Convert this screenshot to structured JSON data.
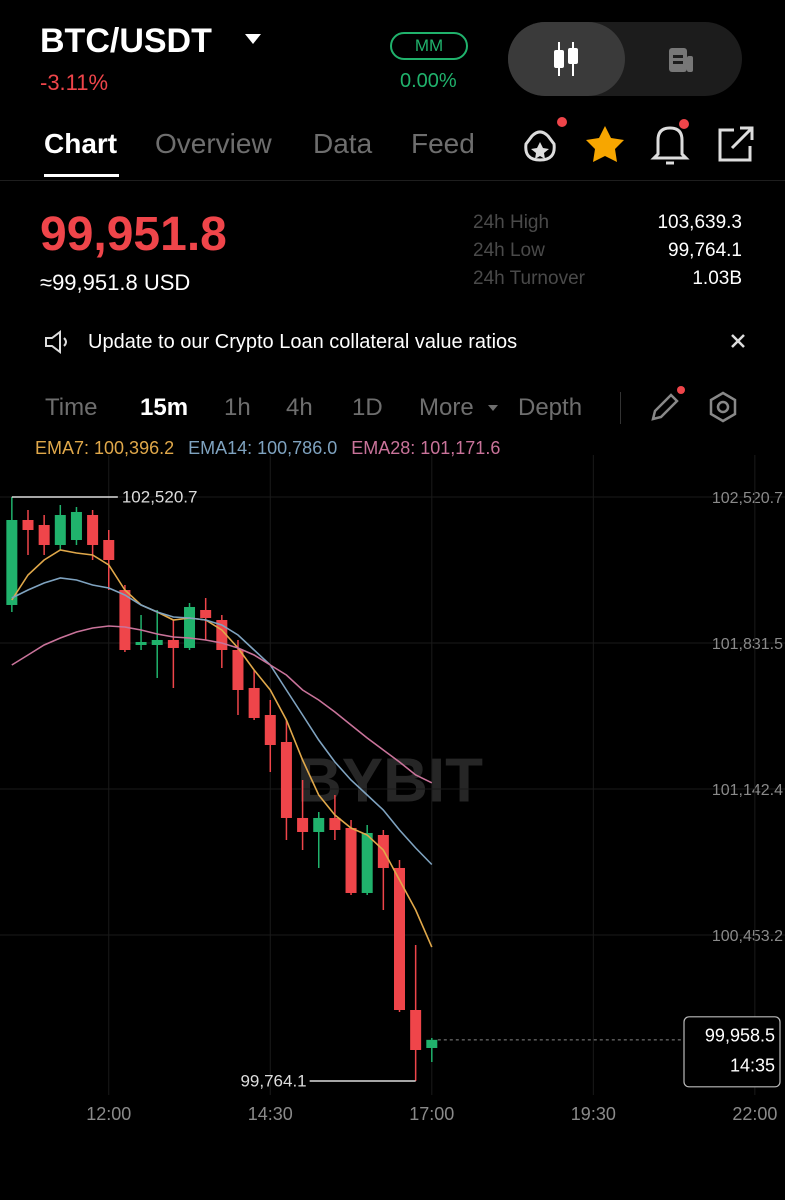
{
  "header": {
    "symbol": "BTC/USDT",
    "change": "-3.11%",
    "badge": "MM",
    "badge_change": "0.00%"
  },
  "tabs": [
    "Chart",
    "Overview",
    "Data",
    "Feed"
  ],
  "price": {
    "last": "99,951.8",
    "usd": "≈99,951.8 USD"
  },
  "stats": [
    {
      "label": "24h High",
      "value": "103,639.3"
    },
    {
      "label": "24h Low",
      "value": "99,764.1"
    },
    {
      "label": "24h Turnover",
      "value": "1.03B"
    }
  ],
  "announcement": "Update to our Crypto Loan collateral value ratios",
  "timeframes": [
    "Time",
    "15m",
    "1h",
    "4h",
    "1D",
    "More",
    "Depth"
  ],
  "chart_data": {
    "type": "candlestick",
    "legend": [
      "EMA7: 100,396.2",
      "EMA14: 100,786.0",
      "EMA28: 101,171.6"
    ],
    "watermark": "BYBIT",
    "x": [
      "10:30",
      "10:45",
      "11:00",
      "11:15",
      "11:30",
      "11:45",
      "12:00",
      "12:15",
      "12:30",
      "12:45",
      "13:00",
      "13:15",
      "13:30",
      "13:45",
      "14:00",
      "14:15",
      "14:30",
      "14:45",
      "15:00",
      "15:15",
      "15:30",
      "15:45",
      "16:00",
      "16:15",
      "16:30",
      "16:45",
      "17:00"
    ],
    "open": [
      102010.9,
      102412.1,
      102388.5,
      102294.1,
      102317.7,
      102435.7,
      102317.7,
      102081.7,
      101822.1,
      101822.1,
      101845.7,
      101808.0,
      101987.3,
      101940.1,
      101798.5,
      101619.2,
      101491.7,
      101364.3,
      101005.6,
      100939.5,
      101005.6,
      100958.4,
      100651.6,
      100925.3,
      100769.6,
      100099.3,
      99920.0
    ],
    "high": [
      102520.7,
      102459.3,
      102435.7,
      102482.9,
      102473.5,
      102459.3,
      102364.9,
      102105.3,
      101963.7,
      101987.3,
      101940.1,
      102020.4,
      102044.0,
      101963.7,
      101845.7,
      101704.1,
      101562.5,
      101468.1,
      101184.9,
      101033.9,
      101114.1,
      100996.1,
      100972.5,
      100948.9,
      100807.3,
      100406.1,
      99967.2
    ],
    "low": [
      101977.9,
      102246.9,
      102246.9,
      102270.5,
      102294.1,
      102223.3,
      102081.7,
      101789.1,
      101798.5,
      101666.4,
      101619.2,
      101798.5,
      101845.7,
      101713.6,
      101491.7,
      101468.1,
      101222.7,
      100901.7,
      100854.5,
      100769.6,
      100901.7,
      100642.1,
      100642.1,
      100571.3,
      100089.9,
      99764.1,
      99853.9
    ],
    "close": [
      102412.1,
      102364.9,
      102294.1,
      102435.7,
      102449.9,
      102294.1,
      102223.3,
      101798.5,
      101836.3,
      101845.7,
      101808.0,
      102001.5,
      101949.6,
      101798.5,
      101609.7,
      101477.6,
      101350.1,
      101005.6,
      100939.5,
      101005.6,
      100948.9,
      100651.6,
      100934.8,
      100769.6,
      100099.3,
      99910.5,
      99958.5
    ],
    "up_color": "#20b26c",
    "down_color": "#ef454a",
    "lines": [
      {
        "color": "#e0a84a",
        "values": [
          102034.5,
          102152.5,
          102223.3,
          102270.5,
          102256.4,
          102246.9,
          102199.7,
          102081.7,
          102010.9,
          101977.9,
          101940.1,
          101949.6,
          101940.1,
          101892.9,
          101808.0,
          101704.1,
          101609.7,
          101468.1,
          101279.3,
          101114.1,
          101019.7,
          100958.4,
          100925.3,
          100854.5,
          100712.9,
          100571.3,
          100396.2
        ]
      },
      {
        "color": "#7fa3c0",
        "values": [
          102044.0,
          102081.7,
          102114.8,
          102138.4,
          102128.9,
          102105.3,
          102091.2,
          102058.1,
          102010.9,
          101977.9,
          101954.3,
          101949.6,
          101940.1,
          101916.5,
          101869.3,
          101798.5,
          101727.7,
          101609.7,
          101491.7,
          101373.7,
          101269.9,
          101184.9,
          101114.1,
          101043.3,
          100948.9,
          100864.0,
          100786.0
        ]
      },
      {
        "color": "#c9739a",
        "values": [
          101727.7,
          101774.9,
          101822.1,
          101855.2,
          101883.5,
          101902.4,
          101911.8,
          101907.1,
          101892.9,
          101874.1,
          101859.9,
          101855.2,
          101845.7,
          101831.6,
          101808.0,
          101774.9,
          101727.7,
          101680.5,
          101609.7,
          101562.5,
          101505.9,
          101444.5,
          101383.2,
          101326.5,
          101269.9,
          101208.5,
          101171.6
        ]
      }
    ],
    "ylim": [
      99698.1,
      102695.3
    ],
    "yticks": [
      {
        "value": 100453.2,
        "label": "100,453.2"
      },
      {
        "value": 101142.4,
        "label": "101,142.4"
      },
      {
        "value": 101831.5,
        "label": "101,831.5"
      },
      {
        "value": 102520.7,
        "label": "102,520.7"
      }
    ],
    "xlim": [
      "10:19",
      "22:28"
    ],
    "xticks": [
      "12:00",
      "14:30",
      "17:00",
      "19:30",
      "22:00"
    ],
    "grid": true,
    "high_marker": {
      "value": 102520.7,
      "label": "102,520.7"
    },
    "low_marker": {
      "value": 99764.1,
      "label": "99,764.1"
    },
    "last_price": {
      "value": 99958.5,
      "label": "99,958.5"
    },
    "countdown": "14:35"
  }
}
